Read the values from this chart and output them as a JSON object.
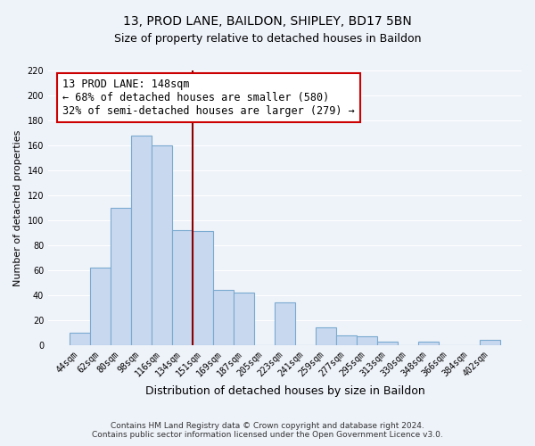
{
  "title1": "13, PROD LANE, BAILDON, SHIPLEY, BD17 5BN",
  "title2": "Size of property relative to detached houses in Baildon",
  "xlabel": "Distribution of detached houses by size in Baildon",
  "ylabel": "Number of detached properties",
  "bar_labels": [
    "44sqm",
    "62sqm",
    "80sqm",
    "98sqm",
    "116sqm",
    "134sqm",
    "151sqm",
    "169sqm",
    "187sqm",
    "205sqm",
    "223sqm",
    "241sqm",
    "259sqm",
    "277sqm",
    "295sqm",
    "313sqm",
    "330sqm",
    "348sqm",
    "366sqm",
    "384sqm",
    "402sqm"
  ],
  "bar_values": [
    10,
    62,
    110,
    168,
    160,
    92,
    91,
    44,
    42,
    0,
    34,
    0,
    14,
    8,
    7,
    3,
    0,
    3,
    0,
    0,
    4
  ],
  "bar_color": "#c8d8ef",
  "bar_edge_color": "#7aaad0",
  "property_size_bar_index": 6,
  "vline_color": "#8b0000",
  "annotation_title": "13 PROD LANE: 148sqm",
  "annotation_line1": "← 68% of detached houses are smaller (580)",
  "annotation_line2": "32% of semi-detached houses are larger (279) →",
  "annotation_box_color": "#ffffff",
  "annotation_box_edge": "#cc0000",
  "ylim": [
    0,
    220
  ],
  "yticks": [
    0,
    20,
    40,
    60,
    80,
    100,
    120,
    140,
    160,
    180,
    200,
    220
  ],
  "footer1": "Contains HM Land Registry data © Crown copyright and database right 2024.",
  "footer2": "Contains public sector information licensed under the Open Government Licence v3.0.",
  "bg_color": "#eef2f9",
  "grid_color": "#ffffff",
  "title1_fontsize": 10,
  "title2_fontsize": 9,
  "ylabel_fontsize": 8,
  "xlabel_fontsize": 9,
  "tick_fontsize": 7,
  "footer_fontsize": 6.5,
  "annotation_fontsize": 8.5
}
